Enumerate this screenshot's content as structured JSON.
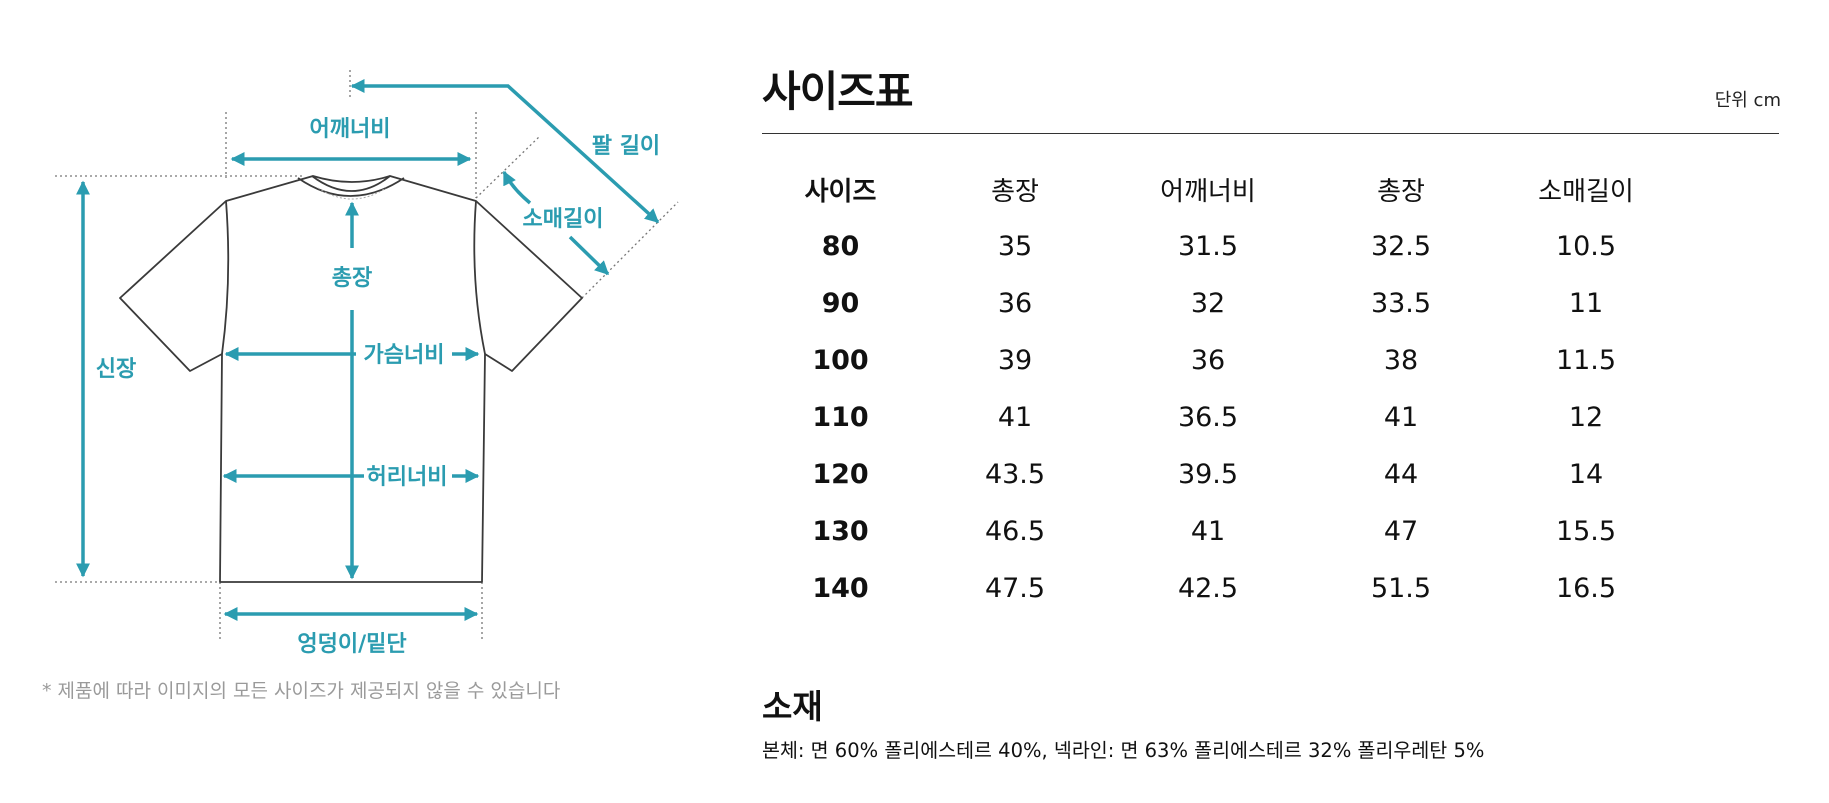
{
  "diagram": {
    "labels": {
      "shoulder": "어깨너비",
      "arm_length": "팔 길이",
      "sleeve": "소매길이",
      "height": "신장",
      "length": "총장",
      "chest": "가슴너비",
      "waist": "허리너비",
      "hem": "엉덩이/밑단"
    },
    "note": "* 제품에 따라 이미지의 모든 사이즈가 제공되지 않을 수 있습니다",
    "accent_color": "#2b9cb0"
  },
  "size_table": {
    "title": "사이즈표",
    "unit": "단위 cm",
    "headers": [
      "사이즈",
      "총장",
      "어깨너비",
      "총장",
      "소매길이"
    ],
    "rows": [
      [
        "80",
        "35",
        "31.5",
        "32.5",
        "10.5"
      ],
      [
        "90",
        "36",
        "32",
        "33.5",
        "11"
      ],
      [
        "100",
        "39",
        "36",
        "38",
        "11.5"
      ],
      [
        "110",
        "41",
        "36.5",
        "41",
        "12"
      ],
      [
        "120",
        "43.5",
        "39.5",
        "44",
        "14"
      ],
      [
        "130",
        "46.5",
        "41",
        "47",
        "15.5"
      ],
      [
        "140",
        "47.5",
        "42.5",
        "51.5",
        "16.5"
      ]
    ]
  },
  "material": {
    "title": "소재",
    "text": "본체: 면 60% 폴리에스테르 40%, 넥라인: 면 63% 폴리에스테르 32% 폴리우레탄 5%"
  }
}
